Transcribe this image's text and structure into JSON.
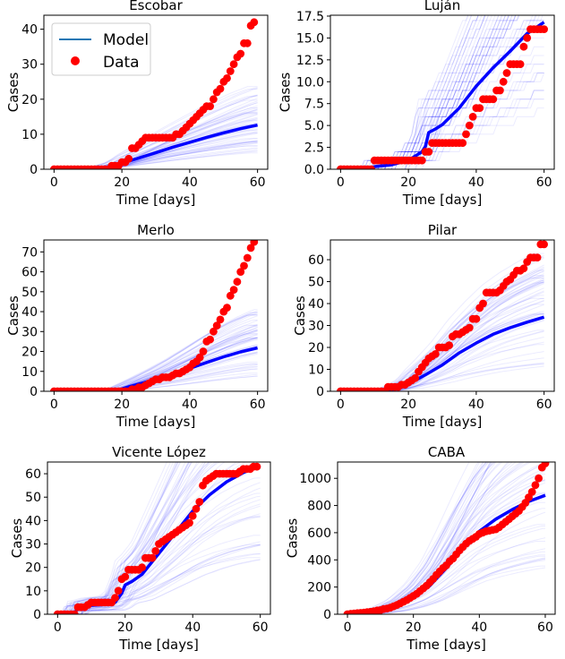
{
  "colors": {
    "model": "#0000ff",
    "data": "#ff0000",
    "ensemble": "#0000ff",
    "legend_model_line": "#1f77b4"
  },
  "legend": {
    "model_label": "Model",
    "data_label": "Data"
  },
  "chart_data": [
    {
      "type": "line",
      "title": "Escobar",
      "xlabel": "Time [days]",
      "ylabel": "Cases",
      "xlim": [
        -3,
        63
      ],
      "ylim": [
        0,
        44
      ],
      "xticks": [
        0,
        20,
        40,
        60
      ],
      "yticks": [
        0,
        10,
        20,
        30,
        40
      ],
      "ytick_labels": [
        "0",
        "10",
        "20",
        "30",
        "40"
      ],
      "model": {
        "x": [
          0,
          5,
          10,
          15,
          18,
          20,
          22,
          25,
          30,
          35,
          40,
          45,
          50,
          55,
          60
        ],
        "y": [
          0,
          0,
          0.2,
          0.5,
          1,
          1.6,
          2.3,
          3.2,
          4.7,
          6.3,
          7.7,
          9.1,
          10.4,
          11.6,
          12.6
        ]
      },
      "data": {
        "x": [
          0,
          1,
          2,
          3,
          4,
          5,
          6,
          7,
          8,
          9,
          10,
          11,
          12,
          13,
          14,
          15,
          16,
          17,
          18,
          19,
          20,
          21,
          22,
          23,
          24,
          25,
          26,
          27,
          28,
          29,
          30,
          31,
          32,
          33,
          34,
          35,
          36,
          37,
          38,
          39,
          40,
          41,
          42,
          43,
          44,
          45,
          46,
          47,
          48,
          49,
          50,
          51,
          52,
          53,
          54,
          55,
          56,
          57,
          58,
          59
        ],
        "y": [
          0,
          0,
          0,
          0,
          0,
          0,
          0,
          0,
          0,
          0,
          0,
          0,
          0,
          0,
          0,
          0,
          0,
          1,
          1,
          1,
          2,
          2,
          3,
          6,
          6,
          7,
          8,
          9,
          9,
          9,
          9,
          9,
          9,
          9,
          9,
          9,
          10,
          10,
          11,
          12,
          13,
          14,
          15,
          16,
          17,
          18,
          18,
          20,
          22,
          23,
          25,
          26,
          28,
          30,
          32,
          33,
          36,
          36,
          41,
          42
        ]
      },
      "ensemble_note": "100 faint stochastic model realizations"
    },
    {
      "type": "line",
      "title": "Luján",
      "xlabel": "Time [days]",
      "ylabel": "Cases",
      "xlim": [
        -3,
        63
      ],
      "ylim": [
        0,
        17.6
      ],
      "xticks": [
        0,
        20,
        40,
        60
      ],
      "yticks": [
        0,
        2.5,
        5,
        7.5,
        10,
        12.5,
        15,
        17.5
      ],
      "ytick_labels": [
        "0.0",
        "2.5",
        "5.0",
        "7.5",
        "10.0",
        "12.5",
        "15.0",
        "17.5"
      ],
      "model": {
        "x": [
          0,
          9,
          10,
          15,
          20,
          22,
          24,
          25,
          26,
          28,
          30,
          35,
          40,
          45,
          50,
          55,
          60
        ],
        "y": [
          0,
          0,
          0.3,
          0.5,
          1,
          1.5,
          2,
          2.6,
          4.2,
          4.6,
          5.1,
          7,
          9.5,
          11.6,
          13.5,
          15.5,
          16.8
        ]
      },
      "data": {
        "x": [
          0,
          1,
          2,
          3,
          4,
          5,
          6,
          7,
          8,
          9,
          10,
          11,
          12,
          13,
          14,
          15,
          16,
          17,
          18,
          19,
          20,
          21,
          22,
          23,
          24,
          25,
          26,
          27,
          28,
          29,
          30,
          31,
          32,
          33,
          34,
          35,
          36,
          37,
          38,
          39,
          40,
          41,
          42,
          43,
          44,
          45,
          46,
          47,
          48,
          49,
          50,
          51,
          52,
          53,
          54,
          55,
          56,
          57,
          58,
          59,
          60
        ],
        "y": [
          0,
          0,
          0,
          0,
          0,
          0,
          0,
          0,
          0,
          0,
          1,
          1,
          1,
          1,
          1,
          1,
          1,
          1,
          1,
          1,
          1,
          1,
          1,
          1,
          1,
          2,
          2,
          3,
          3,
          3,
          3,
          3,
          3,
          3,
          3,
          3,
          3,
          4,
          5,
          6,
          7,
          7,
          8,
          8,
          8,
          8,
          9,
          9,
          10,
          11,
          12,
          12,
          12,
          12,
          14,
          15,
          16,
          16,
          16,
          16,
          16
        ]
      },
      "ensemble_note": "100 faint stochastic model realizations"
    },
    {
      "type": "line",
      "title": "Merlo",
      "xlabel": "Time [days]",
      "ylabel": "Cases",
      "xlim": [
        -3,
        63
      ],
      "ylim": [
        0,
        76
      ],
      "xticks": [
        0,
        20,
        40,
        60
      ],
      "yticks": [
        0,
        10,
        20,
        30,
        40,
        50,
        60,
        70
      ],
      "ytick_labels": [
        "0",
        "10",
        "20",
        "30",
        "40",
        "50",
        "60",
        "70"
      ],
      "model": {
        "x": [
          0,
          10,
          18,
          20,
          22,
          25,
          30,
          35,
          40,
          45,
          50,
          55,
          60
        ],
        "y": [
          0,
          0,
          0.5,
          1.2,
          2.2,
          3.6,
          6,
          8.6,
          11.5,
          14.5,
          17.3,
          19.8,
          21.8
        ]
      },
      "data": {
        "x": [
          0,
          1,
          2,
          3,
          4,
          5,
          6,
          7,
          8,
          9,
          10,
          11,
          12,
          13,
          14,
          15,
          16,
          17,
          18,
          19,
          20,
          21,
          22,
          23,
          24,
          25,
          26,
          27,
          28,
          29,
          30,
          31,
          32,
          33,
          34,
          35,
          36,
          37,
          38,
          39,
          40,
          41,
          42,
          43,
          44,
          45,
          46,
          47,
          48,
          49,
          50,
          51,
          52,
          53,
          54,
          55,
          56,
          57,
          58,
          59
        ],
        "y": [
          0,
          0,
          0,
          0,
          0,
          0,
          0,
          0,
          0,
          0,
          0,
          0,
          0,
          0,
          0,
          0,
          0,
          0,
          0,
          0,
          0,
          0,
          0,
          1,
          1,
          2,
          2,
          3,
          4,
          5,
          6,
          6,
          7,
          7,
          7,
          8,
          9,
          9,
          10,
          11,
          12,
          14,
          15,
          17,
          20,
          25,
          26,
          30,
          33,
          36,
          40,
          42,
          48,
          51,
          55,
          60,
          63,
          67,
          72,
          75
        ]
      },
      "ensemble_note": "100 faint stochastic model realizations"
    },
    {
      "type": "line",
      "title": "Pilar",
      "xlabel": "Time [days]",
      "ylabel": "Cases",
      "xlim": [
        -3,
        63
      ],
      "ylim": [
        0,
        69
      ],
      "xticks": [
        0,
        20,
        40,
        60
      ],
      "yticks": [
        0,
        10,
        20,
        30,
        40,
        50,
        60
      ],
      "ytick_labels": [
        "0",
        "10",
        "20",
        "30",
        "40",
        "50",
        "60"
      ],
      "model": {
        "x": [
          0,
          10,
          14,
          17,
          20,
          22,
          25,
          30,
          35,
          40,
          45,
          50,
          55,
          60
        ],
        "y": [
          0,
          0,
          0.5,
          1.5,
          3,
          5,
          7.5,
          12,
          17.5,
          22,
          26,
          29,
          31.5,
          33.8
        ]
      },
      "data": {
        "x": [
          0,
          1,
          2,
          3,
          4,
          5,
          6,
          7,
          8,
          9,
          10,
          11,
          12,
          13,
          14,
          15,
          16,
          17,
          18,
          19,
          20,
          21,
          22,
          23,
          24,
          25,
          26,
          27,
          28,
          29,
          30,
          31,
          32,
          33,
          34,
          35,
          36,
          37,
          38,
          39,
          40,
          41,
          42,
          43,
          44,
          45,
          46,
          47,
          48,
          49,
          50,
          51,
          52,
          53,
          54,
          55,
          56,
          57,
          58,
          59,
          60
        ],
        "y": [
          0,
          0,
          0,
          0,
          0,
          0,
          0,
          0,
          0,
          0,
          0,
          0,
          0,
          0,
          2,
          2,
          2,
          2,
          3,
          3,
          4,
          5,
          6,
          9,
          11,
          13,
          15,
          16,
          17,
          20,
          20,
          20,
          21,
          25,
          26,
          26,
          27,
          28,
          29,
          33,
          33,
          38,
          40,
          45,
          45,
          45,
          45,
          46,
          48,
          50,
          51,
          53,
          55,
          55,
          56,
          59,
          61,
          61,
          61,
          67,
          67
        ]
      },
      "ensemble_note": "100 faint stochastic model realizations"
    },
    {
      "type": "line",
      "title": "Vicente López",
      "xlabel": "Time [days]",
      "ylabel": "Cases",
      "xlim": [
        -3,
        63
      ],
      "ylim": [
        0,
        65
      ],
      "xticks": [
        0,
        20,
        40,
        60
      ],
      "yticks": [
        0,
        10,
        20,
        30,
        40,
        50,
        60
      ],
      "ytick_labels": [
        "0",
        "10",
        "20",
        "30",
        "40",
        "50",
        "60"
      ],
      "model": {
        "x": [
          0,
          5,
          6,
          8,
          10,
          15,
          17,
          19,
          20,
          22,
          25,
          30,
          35,
          40,
          45,
          50,
          55,
          60
        ],
        "y": [
          0,
          0,
          3,
          3.3,
          3.8,
          4.2,
          5,
          9,
          12.5,
          14,
          17,
          26,
          35,
          44,
          51,
          56.5,
          60.5,
          63.5
        ]
      },
      "data": {
        "x": [
          0,
          1,
          2,
          3,
          4,
          5,
          6,
          7,
          8,
          9,
          10,
          11,
          12,
          13,
          14,
          15,
          16,
          17,
          18,
          19,
          20,
          21,
          22,
          23,
          24,
          25,
          26,
          27,
          28,
          29,
          30,
          31,
          32,
          33,
          34,
          35,
          36,
          37,
          38,
          39,
          40,
          41,
          42,
          43,
          44,
          45,
          46,
          47,
          48,
          49,
          50,
          51,
          52,
          53,
          54,
          55,
          56,
          57,
          58,
          59
        ],
        "y": [
          0,
          0,
          0,
          0,
          0,
          0,
          3,
          3,
          3,
          4,
          5,
          5,
          5,
          5,
          5,
          5,
          5,
          7,
          10,
          15,
          16,
          19,
          19,
          19,
          19,
          20,
          24,
          24,
          24,
          27,
          30,
          31,
          32,
          33,
          34,
          35,
          36,
          37,
          38,
          39,
          42,
          45,
          48,
          55,
          57,
          58,
          59,
          60,
          60,
          60,
          60,
          60,
          60,
          60,
          61,
          62,
          62,
          62,
          63,
          63
        ]
      },
      "ensemble_note": "100 faint stochastic model realizations"
    },
    {
      "type": "line",
      "title": "CABA",
      "xlabel": "Time [days]",
      "ylabel": "Cases",
      "xlim": [
        -3,
        63
      ],
      "ylim": [
        0,
        1120
      ],
      "xticks": [
        0,
        20,
        40,
        60
      ],
      "yticks": [
        0,
        200,
        400,
        600,
        800,
        1000
      ],
      "ytick_labels": [
        "0",
        "200",
        "400",
        "600",
        "800",
        "1000"
      ],
      "model": {
        "x": [
          0,
          5,
          10,
          15,
          20,
          25,
          30,
          35,
          40,
          45,
          50,
          55,
          60
        ],
        "y": [
          0,
          8,
          25,
          60,
          120,
          210,
          340,
          480,
          610,
          700,
          770,
          830,
          875
        ]
      },
      "data": {
        "x": [
          0,
          1,
          2,
          3,
          4,
          5,
          6,
          7,
          8,
          9,
          10,
          11,
          12,
          13,
          14,
          15,
          16,
          17,
          18,
          19,
          20,
          21,
          22,
          23,
          24,
          25,
          26,
          27,
          28,
          29,
          30,
          31,
          32,
          33,
          34,
          35,
          36,
          37,
          38,
          39,
          40,
          41,
          42,
          43,
          44,
          45,
          46,
          47,
          48,
          49,
          50,
          51,
          52,
          53,
          54,
          55,
          56,
          57,
          58,
          59,
          60
        ],
        "y": [
          0,
          3,
          5,
          8,
          10,
          12,
          15,
          18,
          22,
          28,
          30,
          38,
          42,
          48,
          58,
          68,
          80,
          92,
          105,
          120,
          135,
          150,
          170,
          190,
          210,
          235,
          260,
          290,
          315,
          340,
          360,
          390,
          410,
          440,
          470,
          495,
          520,
          540,
          555,
          570,
          590,
          600,
          610,
          615,
          620,
          625,
          640,
          660,
          680,
          700,
          720,
          740,
          760,
          790,
          820,
          860,
          900,
          950,
          1000,
          1080,
          1110
        ]
      },
      "ensemble_note": "100 faint stochastic model realizations"
    }
  ]
}
